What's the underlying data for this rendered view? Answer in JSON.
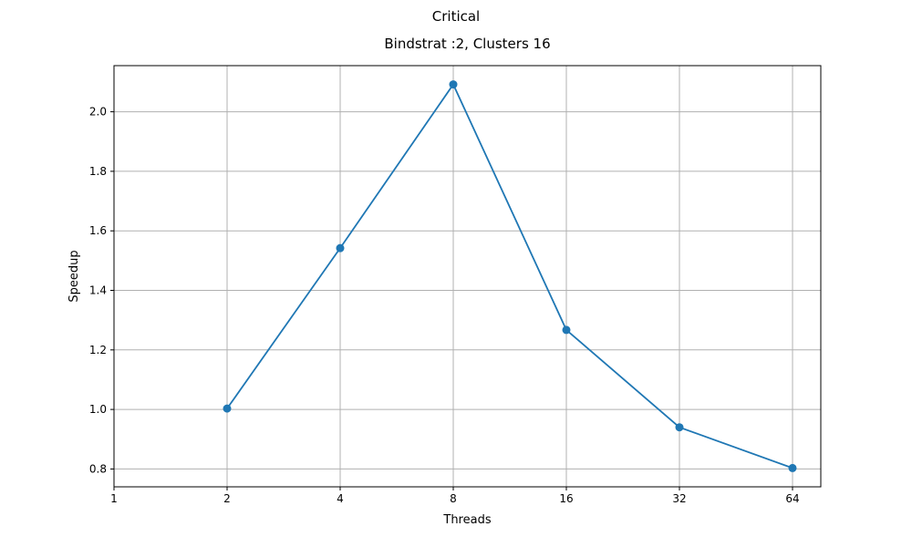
{
  "chart_data": {
    "type": "line",
    "suptitle": "Critical",
    "title": "Bindstrat :2, Clusters 16",
    "xlabel": "Threads",
    "ylabel": "Speedup",
    "x_scale": "log2",
    "x_ticks": [
      "1",
      "2",
      "4",
      "8",
      "16",
      "32",
      "64"
    ],
    "y_ticks": [
      "0.8",
      "1.0",
      "1.2",
      "1.4",
      "1.6",
      "1.8",
      "2.0"
    ],
    "ylim": [
      0.74,
      2.155
    ],
    "grid": true,
    "series": [
      {
        "color": "#1f77b4",
        "marker": "circle",
        "x": [
          2,
          4,
          8,
          16,
          32,
          64
        ],
        "y": [
          1.003,
          1.542,
          2.092,
          1.267,
          0.94,
          0.803
        ]
      }
    ]
  }
}
